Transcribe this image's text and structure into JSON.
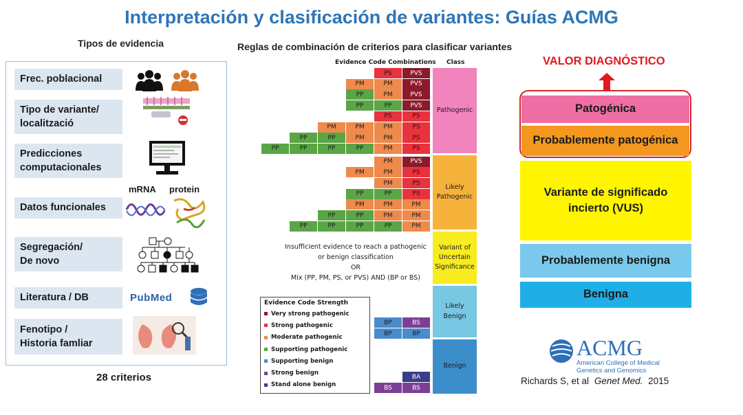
{
  "title": "Interpretación y clasificación de variantes: Guías ACMG",
  "left": {
    "heading": "Tipos de evidencia",
    "items": [
      {
        "line1": "Frec. poblacional",
        "line2": ""
      },
      {
        "line1": "Tipo de variante/",
        "line2": "localització"
      },
      {
        "line1": "Predicciones",
        "line2": "computacionales"
      },
      {
        "line1": "Datos funcionales",
        "line2": ""
      },
      {
        "line1": "Segregación/",
        "line2": "De novo"
      },
      {
        "line1": "Literatura / DB",
        "line2": ""
      },
      {
        "line1": "Fenotipo /",
        "line2": "Historia famliar"
      }
    ],
    "mrna_label": "mRNA",
    "protein_label": "protein",
    "pubmed_text": "PubMed",
    "footer": "28 criterios"
  },
  "middle": {
    "heading": "Reglas de combinación de criterios para clasificar variantes",
    "col_header": "Evidence Code Combinations",
    "class_header": "Class",
    "rows": [
      [
        "PS",
        "PVS"
      ],
      [
        "PM",
        "PM",
        "PVS"
      ],
      [
        "PP",
        "PM",
        "PVS"
      ],
      [
        "PP",
        "PP",
        "PVS"
      ],
      [
        "PS",
        "PS"
      ],
      [
        "PM",
        "PM",
        "PM",
        "PS"
      ],
      [
        "PP",
        "PP",
        "PM",
        "PM",
        "PS"
      ],
      [
        "PP",
        "PP",
        "PP",
        "PP",
        "PM",
        "PS"
      ],
      [
        "PM",
        "PVS"
      ],
      [
        "PM",
        "PM",
        "PS"
      ],
      [
        "PM",
        "PS"
      ],
      [
        "PP",
        "PP",
        "PS"
      ],
      [
        "PM",
        "PM",
        "PM"
      ],
      [
        "PP",
        "PP",
        "PM",
        "PM"
      ],
      [
        "PP",
        "PP",
        "PP",
        "PP",
        "PM"
      ]
    ],
    "classes": [
      {
        "label": "Pathogenic",
        "color": "#f183bd"
      },
      {
        "label": "Likely Pathogenic",
        "color": "#f6b33b"
      },
      {
        "label": "Variant of Uncertain Significance",
        "color": "#f7ec1f"
      },
      {
        "label": "Likely Benign",
        "color": "#78c7e3"
      },
      {
        "label": "Benign",
        "color": "#3c8ecb"
      }
    ],
    "vus_note": {
      "l1": "Insufficient evidence to reach a pathogenic",
      "l2": "or benign classification",
      "l3": "OR",
      "l4": "Mix (PP, PM, PS, or PVS) AND (BP or BS)"
    },
    "benign_rows": [
      [
        "BP",
        "BS"
      ],
      [
        "BP",
        "BP"
      ],
      [
        "BA"
      ],
      [
        "BS",
        "BS"
      ]
    ],
    "code_colors": {
      "PVS": "#8b1a2b",
      "PS": "#e8323d",
      "PM": "#ee8a4b",
      "PP": "#5aa546",
      "BP": "#4a8ccb",
      "BS": "#7d3f94",
      "BA": "#383d8c"
    },
    "legend": {
      "title": "Evidence Code Strength",
      "items": [
        {
          "label": "Very strong pathogenic",
          "color": "#8b1a2b"
        },
        {
          "label": "Strong pathogenic",
          "color": "#e8323d"
        },
        {
          "label": "Moderate pathogenic",
          "color": "#ee8a4b"
        },
        {
          "label": "Supporting pathogenic",
          "color": "#5aa546"
        },
        {
          "label": "Supporting benign",
          "color": "#4a8ccb"
        },
        {
          "label": "Strong benign",
          "color": "#7d3f94"
        },
        {
          "label": "Stand alone benign",
          "color": "#383d8c"
        }
      ]
    }
  },
  "right": {
    "heading": "VALOR DIAGNÓSTICO",
    "tiers": [
      {
        "line1": "Patogénica",
        "line2": "",
        "color": "#ef6ea3"
      },
      {
        "line1": "Probablemente patogénica",
        "line2": "",
        "color": "#f3971f"
      },
      {
        "line1": "Variante de significado",
        "line2": "incierto (VUS)",
        "color": "#fff500"
      },
      {
        "line1": "Probablemente benigna",
        "line2": "",
        "color": "#79c9ec"
      },
      {
        "line1": "Benigna",
        "line2": "",
        "color": "#20aee6"
      }
    ],
    "logo_text": "ACMG",
    "logo_sub1": "American College of Medical",
    "logo_sub2": "Genetics and Genomics",
    "citation": "Richards S, et al",
    "journal": "Genet Med.",
    "year": "2015"
  }
}
